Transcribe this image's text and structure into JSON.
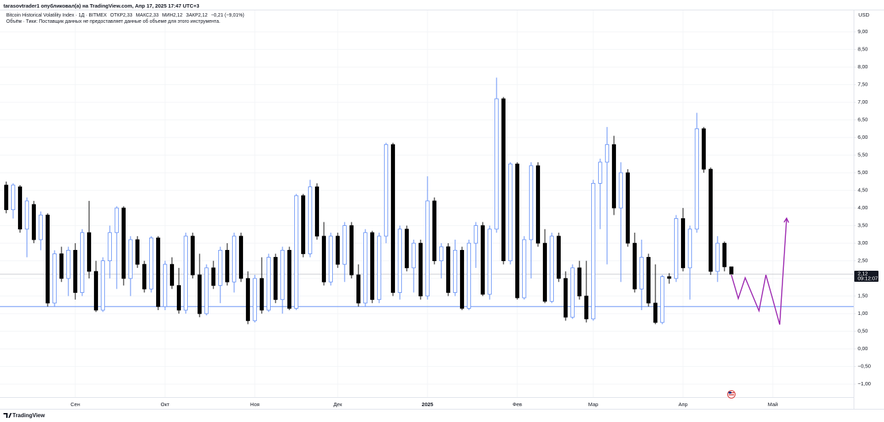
{
  "header": {
    "publisher": "tarasovtrader1 опубликовал(а) на TradingView.com, Апр 17, 2025 17:47 UTC+3",
    "symbol": "Bitcoin Historical Volatility Index · 1Д · BITMEX",
    "open_label": "ОТКР",
    "open": "2,33",
    "high_label": "МАКС",
    "high": "2,33",
    "low_label": "МИН",
    "low": "2,12",
    "close_label": "ЗАКР",
    "close": "2,12",
    "change": "−0,21 (−9,01%)",
    "volume_note": "Объём · Тики: Поставщик данных не предоставляет данные об объеме для этого инструмента."
  },
  "footer": {
    "brand": "TradingView"
  },
  "chart_data": {
    "type": "candlestick",
    "currency": "USD",
    "up_color": "#5b8af5",
    "down_color": "#000000",
    "grid": true,
    "ylim": [
      -1.37,
      9.61
    ],
    "yticks": [
      {
        "value": 9,
        "label": "9,00"
      },
      {
        "value": 8.5,
        "label": "8,50"
      },
      {
        "value": 8,
        "label": "8,00"
      },
      {
        "value": 7.5,
        "label": "7,50"
      },
      {
        "value": 7,
        "label": "7,00"
      },
      {
        "value": 6.5,
        "label": "6,50"
      },
      {
        "value": 6,
        "label": "6,00"
      },
      {
        "value": 5.5,
        "label": "5,50"
      },
      {
        "value": 5,
        "label": "5,00"
      },
      {
        "value": 4.5,
        "label": "4,50"
      },
      {
        "value": 4,
        "label": "4,00"
      },
      {
        "value": 3.5,
        "label": "3,50"
      },
      {
        "value": 3,
        "label": "3,00"
      },
      {
        "value": 2.5,
        "label": "2,50"
      },
      {
        "value": 2,
        "label": "2,00"
      },
      {
        "value": 1.5,
        "label": "1,50"
      },
      {
        "value": 1,
        "label": "1,00"
      },
      {
        "value": 0.5,
        "label": "0,50"
      },
      {
        "value": 0,
        "label": "0,00"
      },
      {
        "value": -0.5,
        "label": "−0,50"
      },
      {
        "value": -1,
        "label": "−1,00"
      }
    ],
    "categories": [
      null,
      null,
      null,
      null,
      null,
      null,
      null,
      null,
      null,
      null,
      "Сен",
      null,
      null,
      null,
      null,
      null,
      null,
      null,
      null,
      null,
      null,
      null,
      null,
      "Окт",
      null,
      null,
      null,
      null,
      null,
      null,
      null,
      null,
      null,
      null,
      null,
      null,
      "Ноя",
      null,
      null,
      null,
      null,
      null,
      null,
      null,
      null,
      null,
      null,
      null,
      "Дек",
      null,
      null,
      null,
      null,
      null,
      null,
      null,
      null,
      null,
      null,
      null,
      null,
      "2025",
      null,
      null,
      null,
      null,
      null,
      null,
      null,
      null,
      null,
      null,
      null,
      null,
      "Фев",
      null,
      null,
      null,
      null,
      null,
      null,
      null,
      null,
      null,
      null,
      "Мар",
      null,
      null,
      null,
      null,
      null,
      null,
      null,
      null,
      null,
      null,
      null,
      null,
      "Апр",
      null,
      null,
      null,
      null,
      null,
      null,
      null,
      null,
      null,
      null,
      null,
      null,
      "Май",
      null,
      null,
      null,
      null,
      null,
      null,
      null,
      null,
      null,
      null,
      null
    ],
    "ohlc": [
      [
        4.65,
        4.75,
        3.85,
        3.95
      ],
      [
        3.95,
        4.7,
        3.7,
        4.65
      ],
      [
        4.6,
        4.65,
        3.3,
        3.4
      ],
      [
        3.4,
        4.3,
        2.6,
        4.2
      ],
      [
        4.1,
        4.2,
        3.0,
        3.1
      ],
      [
        3.1,
        3.9,
        2.8,
        3.8
      ],
      [
        3.8,
        3.85,
        1.2,
        1.3
      ],
      [
        1.3,
        2.8,
        1.2,
        2.7
      ],
      [
        2.7,
        2.9,
        1.9,
        2.0
      ],
      [
        2.0,
        2.9,
        1.5,
        2.8
      ],
      [
        2.8,
        3.0,
        1.4,
        1.6
      ],
      [
        1.6,
        3.4,
        1.5,
        3.3
      ],
      [
        3.3,
        4.2,
        2.0,
        2.2
      ],
      [
        2.2,
        2.5,
        1.05,
        1.1
      ],
      [
        1.1,
        2.6,
        1.05,
        2.5
      ],
      [
        2.5,
        3.5,
        2.0,
        3.3
      ],
      [
        3.3,
        4.05,
        1.7,
        4.0
      ],
      [
        4.0,
        4.05,
        1.8,
        2.0
      ],
      [
        2.0,
        3.2,
        1.5,
        3.1
      ],
      [
        3.1,
        3.2,
        2.3,
        2.4
      ],
      [
        2.4,
        2.5,
        1.6,
        1.7
      ],
      [
        1.7,
        3.2,
        1.6,
        3.15
      ],
      [
        3.15,
        3.2,
        1.1,
        1.2
      ],
      [
        1.2,
        2.5,
        1.1,
        2.4
      ],
      [
        2.4,
        2.6,
        1.7,
        1.8
      ],
      [
        1.8,
        2.3,
        1.0,
        1.1
      ],
      [
        1.1,
        3.3,
        1.0,
        3.2
      ],
      [
        3.2,
        3.3,
        2.0,
        2.1
      ],
      [
        2.1,
        2.7,
        0.9,
        1.0
      ],
      [
        1.0,
        2.4,
        0.95,
        2.3
      ],
      [
        2.3,
        2.5,
        1.7,
        1.8
      ],
      [
        1.8,
        2.9,
        1.3,
        2.8
      ],
      [
        2.8,
        3.0,
        1.8,
        1.9
      ],
      [
        1.9,
        3.3,
        1.6,
        3.2
      ],
      [
        3.2,
        3.3,
        1.9,
        2.0
      ],
      [
        2.0,
        2.2,
        0.7,
        0.8
      ],
      [
        0.8,
        2.1,
        0.75,
        2.0
      ],
      [
        2.0,
        2.6,
        1.0,
        1.1
      ],
      [
        1.1,
        2.7,
        1.05,
        2.6
      ],
      [
        2.6,
        2.7,
        1.3,
        1.4
      ],
      [
        1.4,
        2.9,
        1.0,
        2.8
      ],
      [
        2.8,
        2.9,
        1.1,
        1.15
      ],
      [
        1.15,
        4.4,
        1.1,
        4.35
      ],
      [
        4.35,
        4.4,
        2.6,
        2.7
      ],
      [
        2.7,
        4.8,
        2.6,
        4.6
      ],
      [
        4.6,
        4.7,
        3.1,
        3.2
      ],
      [
        3.2,
        3.6,
        1.8,
        1.9
      ],
      [
        1.9,
        3.3,
        1.8,
        3.2
      ],
      [
        3.2,
        3.3,
        2.3,
        2.4
      ],
      [
        2.4,
        3.6,
        1.9,
        3.5
      ],
      [
        3.5,
        3.6,
        2.0,
        2.1
      ],
      [
        2.1,
        2.4,
        1.2,
        1.3
      ],
      [
        1.3,
        3.4,
        1.2,
        3.3
      ],
      [
        3.3,
        3.35,
        1.3,
        1.4
      ],
      [
        1.4,
        3.3,
        1.3,
        3.2
      ],
      [
        3.2,
        5.85,
        3.0,
        5.8
      ],
      [
        5.8,
        5.85,
        1.5,
        1.6
      ],
      [
        1.6,
        3.5,
        1.4,
        3.4
      ],
      [
        3.4,
        3.5,
        2.2,
        2.3
      ],
      [
        2.3,
        3.1,
        1.6,
        3.0
      ],
      [
        3.0,
        3.1,
        1.4,
        1.5
      ],
      [
        1.5,
        4.9,
        1.4,
        4.2
      ],
      [
        4.2,
        4.3,
        2.4,
        2.5
      ],
      [
        2.5,
        3.0,
        2.0,
        2.9
      ],
      [
        2.9,
        3.0,
        1.5,
        1.6
      ],
      [
        1.6,
        3.1,
        1.5,
        2.8
      ],
      [
        2.8,
        2.9,
        1.1,
        1.15
      ],
      [
        1.15,
        3.1,
        1.1,
        3.0
      ],
      [
        3.0,
        3.6,
        2.3,
        3.5
      ],
      [
        3.5,
        3.6,
        1.5,
        1.55
      ],
      [
        1.55,
        3.5,
        1.4,
        3.4
      ],
      [
        3.4,
        7.7,
        3.3,
        7.1
      ],
      [
        7.1,
        7.15,
        2.4,
        2.5
      ],
      [
        2.5,
        5.3,
        2.4,
        5.25
      ],
      [
        5.25,
        5.3,
        1.4,
        1.45
      ],
      [
        1.45,
        3.2,
        1.4,
        3.1
      ],
      [
        3.1,
        5.3,
        2.0,
        5.2
      ],
      [
        5.2,
        5.3,
        2.9,
        3.0
      ],
      [
        3.0,
        3.4,
        1.3,
        1.35
      ],
      [
        1.35,
        3.3,
        1.3,
        3.2
      ],
      [
        3.2,
        3.3,
        1.9,
        2.0
      ],
      [
        2.0,
        2.2,
        0.8,
        0.9
      ],
      [
        0.9,
        2.4,
        0.85,
        2.3
      ],
      [
        2.3,
        2.5,
        1.4,
        1.5
      ],
      [
        1.5,
        2.5,
        0.75,
        0.85
      ],
      [
        0.85,
        4.8,
        0.8,
        4.7
      ],
      [
        4.7,
        5.4,
        3.4,
        5.3
      ],
      [
        5.3,
        6.3,
        2.4,
        5.8
      ],
      [
        5.8,
        6.05,
        3.8,
        4.0
      ],
      [
        4.0,
        5.3,
        1.9,
        5.0
      ],
      [
        5.0,
        5.1,
        2.9,
        3.0
      ],
      [
        3.0,
        3.3,
        1.6,
        1.7
      ],
      [
        1.7,
        3.1,
        1.1,
        2.6
      ],
      [
        2.6,
        2.7,
        1.2,
        1.3
      ],
      [
        1.3,
        2.4,
        0.7,
        0.75
      ],
      [
        0.75,
        2.1,
        0.7,
        2.05
      ],
      [
        2.05,
        2.15,
        1.85,
        2.0
      ],
      [
        2.0,
        3.8,
        1.9,
        3.7
      ],
      [
        3.7,
        4.0,
        2.2,
        2.3
      ],
      [
        2.3,
        3.5,
        1.4,
        3.4
      ],
      [
        3.4,
        6.7,
        3.3,
        6.25
      ],
      [
        6.25,
        6.3,
        5.0,
        5.1
      ],
      [
        5.1,
        5.15,
        2.1,
        2.2
      ],
      [
        2.2,
        3.2,
        1.9,
        3.0
      ],
      [
        3.0,
        3.05,
        2.2,
        2.33
      ],
      [
        2.33,
        2.33,
        2.12,
        2.12
      ],
      null,
      null,
      null,
      null,
      null,
      null,
      null,
      null,
      null,
      null,
      null,
      null,
      null,
      null,
      null,
      null,
      null
    ],
    "horizontal_level": {
      "value": 1.2,
      "color": "#5b8af5"
    },
    "last_price": {
      "value": 2.12,
      "label": "2,12",
      "countdown": "09:12:07"
    },
    "projection": {
      "color": "#9c27b0",
      "values": [
        null,
        null,
        null,
        null,
        null,
        null,
        null,
        null,
        null,
        null,
        null,
        null,
        null,
        null,
        null,
        null,
        null,
        null,
        null,
        null,
        null,
        null,
        null,
        null,
        null,
        null,
        null,
        null,
        null,
        null,
        null,
        null,
        null,
        null,
        null,
        null,
        null,
        null,
        null,
        null,
        null,
        null,
        null,
        null,
        null,
        null,
        null,
        null,
        null,
        null,
        null,
        null,
        null,
        null,
        null,
        null,
        null,
        null,
        null,
        null,
        null,
        null,
        null,
        null,
        null,
        null,
        null,
        null,
        null,
        null,
        null,
        null,
        null,
        null,
        null,
        null,
        null,
        null,
        null,
        null,
        null,
        null,
        null,
        null,
        null,
        null,
        null,
        null,
        null,
        null,
        null,
        null,
        null,
        null,
        null,
        null,
        null,
        null,
        null,
        null,
        null,
        null,
        null,
        null,
        null,
        2.1,
        1.43,
        2.02,
        1.55,
        1.08,
        2.1,
        1.4,
        0.69,
        3.71,
        null,
        null,
        null,
        null,
        null,
        null,
        null,
        null,
        null
      ]
    }
  }
}
